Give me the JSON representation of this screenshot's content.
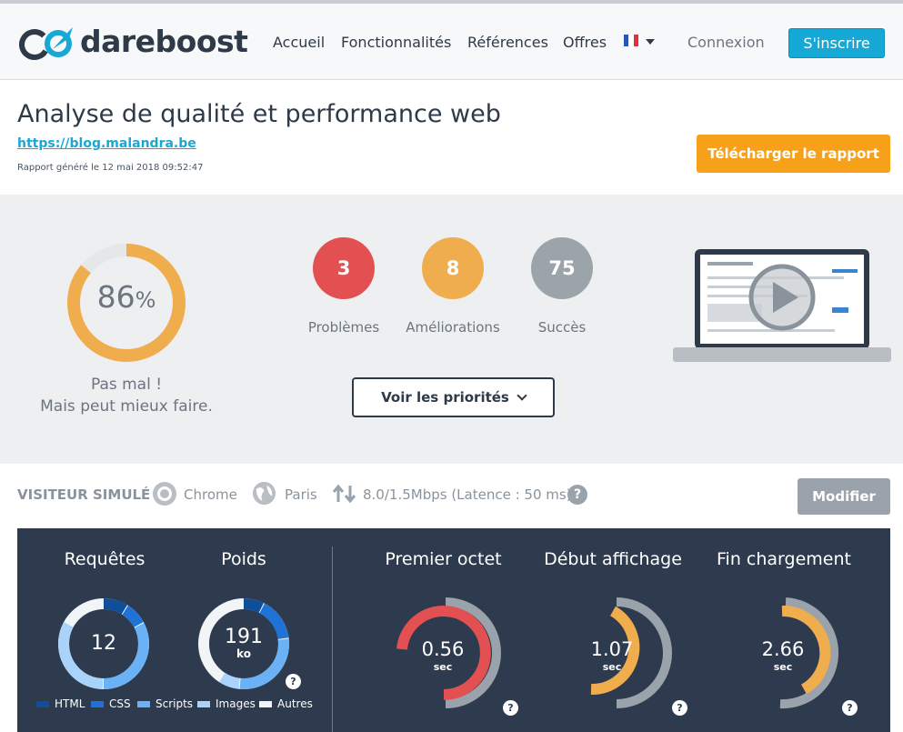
{
  "header": {
    "brand": "dareboost",
    "nav": [
      "Accueil",
      "Fonctionnalités",
      "Références",
      "Offres"
    ],
    "login": "Connexion",
    "signup": "S'inscrire"
  },
  "report": {
    "title": "Analyse de qualité et performance web",
    "url": "https://blog.malandra.be",
    "generated": "Rapport généré le 12 mai 2018 09:52:47",
    "download_label": "Télécharger le rapport"
  },
  "score": {
    "value": "86",
    "unit": "%",
    "verdict_line1": "Pas mal !",
    "verdict_line2": "Mais peut mieux faire."
  },
  "counts": [
    {
      "value": "3",
      "label": "Problèmes",
      "color": "#e25052"
    },
    {
      "value": "8",
      "label": "Améliorations",
      "color": "#f0ad4e"
    },
    {
      "value": "75",
      "label": "Succès",
      "color": "#9aa4a9"
    }
  ],
  "priorities_label": "Voir les priorités",
  "visitor": {
    "label": "VISITEUR SIMULÉ :",
    "browser": "Chrome",
    "location": "Paris",
    "connection": "8.0/1.5Mbps (Latence : 50 ms)",
    "help": "?",
    "modify_label": "Modifier"
  },
  "metrics": {
    "requests": {
      "title": "Requêtes",
      "value": "12"
    },
    "weight": {
      "title": "Poids",
      "value": "191",
      "unit": "ko"
    },
    "legend": [
      "HTML",
      "CSS",
      "Scripts",
      "Images",
      "Autres"
    ],
    "legend_colors": [
      "#0f4f9a",
      "#1f73d6",
      "#6ab2f5",
      "#a9d3fa",
      "#f2f5f8"
    ],
    "first_byte": {
      "title": "Premier octet",
      "value": "0.56",
      "unit": "sec",
      "color": "#e25052"
    },
    "start_render": {
      "title": "Début affichage",
      "value": "1.07",
      "unit": "sec",
      "color": "#f0ad4e"
    },
    "load_end": {
      "title": "Fin chargement",
      "value": "2.66",
      "unit": "sec",
      "color": "#f0ad4e"
    },
    "help": "?"
  },
  "colors": {
    "accent_blue": "#16a9d6",
    "orange": "#f7a11a",
    "dark_panel": "#2e3a4d"
  }
}
